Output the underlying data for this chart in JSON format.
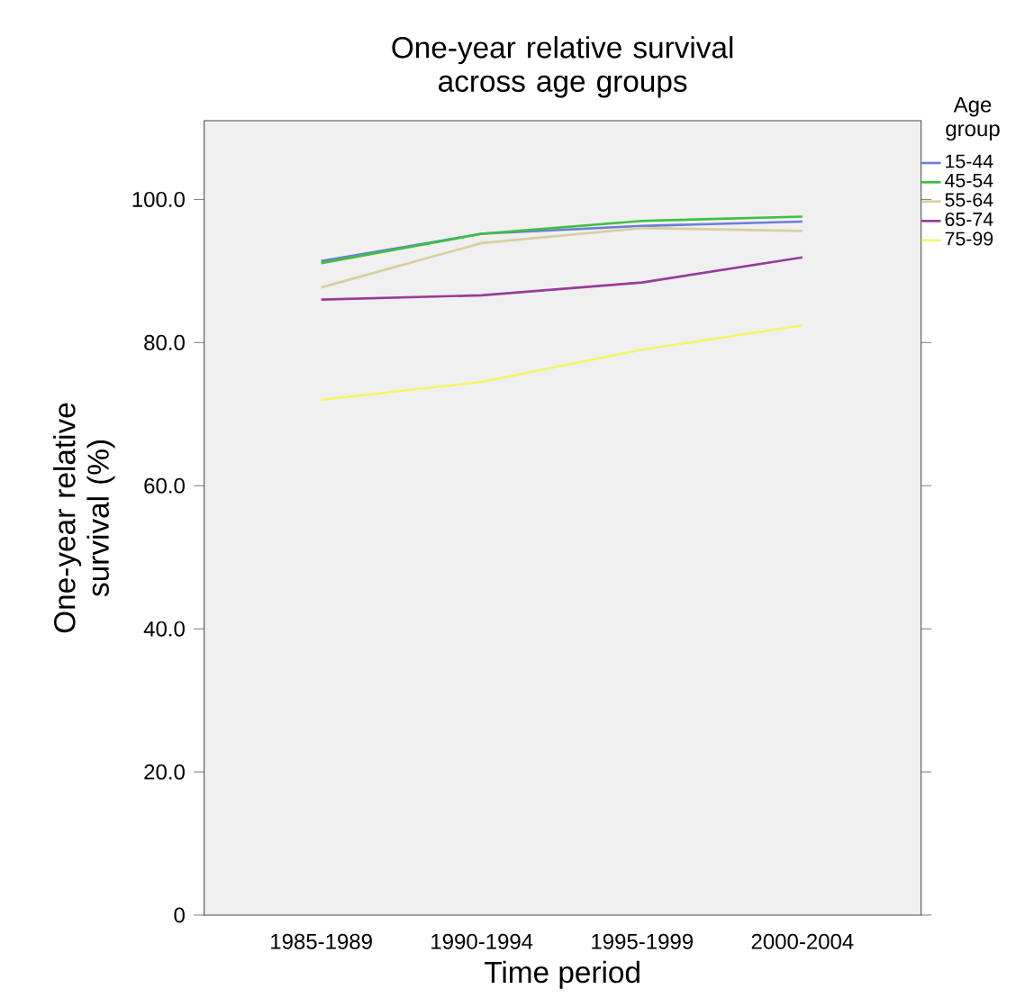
{
  "chart_data": {
    "type": "line",
    "title": "One-year relative survival across age groups",
    "xlabel": "Time period",
    "ylabel": "One-year relative survival (%)",
    "legend_title": "Age group",
    "categories": [
      "1985-1989",
      "1990-1994",
      "1995-1999",
      "2000-2004"
    ],
    "series": [
      {
        "name": "15-44",
        "color": "#6b7fd7",
        "values": [
          91.4,
          95.2,
          96.3,
          96.9
        ]
      },
      {
        "name": "45-54",
        "color": "#3fbf3f",
        "values": [
          91.1,
          95.2,
          97.0,
          97.6
        ]
      },
      {
        "name": "55-64",
        "color": "#d8cfa0",
        "values": [
          87.7,
          93.9,
          96.0,
          95.6
        ]
      },
      {
        "name": "65-74",
        "color": "#9b3a9b",
        "values": [
          86.0,
          86.6,
          88.4,
          91.9
        ]
      },
      {
        "name": "75-99",
        "color": "#f5f56a",
        "values": [
          72.0,
          74.5,
          79.0,
          82.4
        ]
      }
    ],
    "ylim": [
      0,
      111
    ],
    "yticks": [
      {
        "value": 0,
        "label": "0"
      },
      {
        "value": 20,
        "label": "20.0"
      },
      {
        "value": 40,
        "label": "40.0"
      },
      {
        "value": 60,
        "label": "60.0"
      },
      {
        "value": 80,
        "label": "80.0"
      },
      {
        "value": 100,
        "label": "100.0"
      }
    ],
    "grid": false,
    "legend": "top right",
    "marker": "none",
    "line_style": "solid"
  }
}
